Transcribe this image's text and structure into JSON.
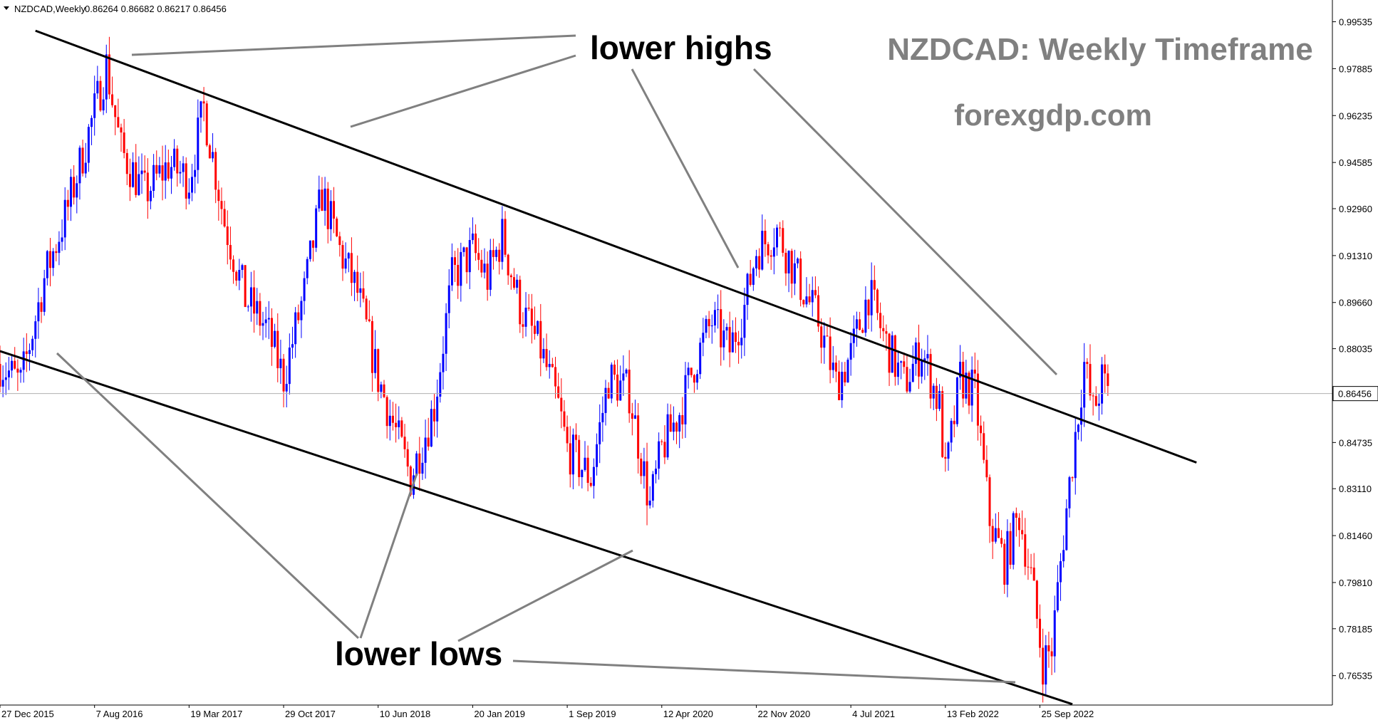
{
  "header": {
    "symbol": "NZDCAD,Weekly",
    "ohlc": "0.86264 0.86682 0.86217 0.86456"
  },
  "watermark": {
    "title": "NZDCAD: Weekly Timeframe",
    "site": "forexgdp.com"
  },
  "annotations": {
    "highs_label": "lower highs",
    "lows_label": "lower lows"
  },
  "chart_data": {
    "type": "candlestick",
    "title": "NZDCAD,Weekly",
    "current_price": 0.86456,
    "current_price_label": "0.86456",
    "ylim": [
      0.755,
      1.003
    ],
    "y_ticks": [
      "0.99535",
      "0.97885",
      "0.96235",
      "0.94585",
      "0.92960",
      "0.91310",
      "0.89660",
      "0.88035",
      "0.86456",
      "0.84735",
      "0.83110",
      "0.81460",
      "0.79810",
      "0.78185",
      "0.76535"
    ],
    "x_ticks": [
      "27 Dec 2015",
      "7 Aug 2016",
      "19 Mar 2017",
      "29 Oct 2017",
      "10 Jun 2018",
      "20 Jan 2019",
      "1 Sep 2019",
      "12 Apr 2020",
      "22 Nov 2020",
      "4 Jul 2021",
      "13 Feb 2022",
      "25 Sep 2022"
    ],
    "price_path": [
      [
        "2015-12-27",
        0.875
      ],
      [
        "2016-02-14",
        0.868
      ],
      [
        "2016-04-10",
        0.905
      ],
      [
        "2016-06-05",
        0.93
      ],
      [
        "2016-07-31",
        0.96
      ],
      [
        "2016-09-04",
        0.98
      ],
      [
        "2016-10-09",
        0.95
      ],
      [
        "2016-12-04",
        0.935
      ],
      [
        "2017-01-29",
        0.945
      ],
      [
        "2017-03-19",
        0.94
      ],
      [
        "2017-04-23",
        0.965
      ],
      [
        "2017-06-11",
        0.925
      ],
      [
        "2017-07-30",
        0.898
      ],
      [
        "2017-09-17",
        0.888
      ],
      [
        "2017-10-29",
        0.87
      ],
      [
        "2017-12-17",
        0.9
      ],
      [
        "2018-01-28",
        0.935
      ],
      [
        "2018-03-11",
        0.915
      ],
      [
        "2018-04-22",
        0.9
      ],
      [
        "2018-06-10",
        0.87
      ],
      [
        "2018-08-26",
        0.835
      ],
      [
        "2018-10-21",
        0.86
      ],
      [
        "2018-12-02",
        0.905
      ],
      [
        "2019-01-20",
        0.915
      ],
      [
        "2019-02-24",
        0.905
      ],
      [
        "2019-03-31",
        0.92
      ],
      [
        "2019-05-12",
        0.895
      ],
      [
        "2019-06-30",
        0.88
      ],
      [
        "2019-08-11",
        0.86
      ],
      [
        "2019-09-01",
        0.845
      ],
      [
        "2019-10-27",
        0.835
      ],
      [
        "2019-12-08",
        0.87
      ],
      [
        "2020-01-26",
        0.865
      ],
      [
        "2020-03-15",
        0.825
      ],
      [
        "2020-04-12",
        0.845
      ],
      [
        "2020-05-24",
        0.858
      ],
      [
        "2020-06-28",
        0.875
      ],
      [
        "2020-08-09",
        0.89
      ],
      [
        "2020-09-20",
        0.88
      ],
      [
        "2020-10-25",
        0.895
      ],
      [
        "2020-11-22",
        0.915
      ],
      [
        "2021-01-10",
        0.922
      ],
      [
        "2021-02-28",
        0.905
      ],
      [
        "2021-04-18",
        0.89
      ],
      [
        "2021-05-30",
        0.868
      ],
      [
        "2021-07-04",
        0.878
      ],
      [
        "2021-08-15",
        0.9
      ],
      [
        "2021-09-26",
        0.882
      ],
      [
        "2021-11-07",
        0.868
      ],
      [
        "2021-12-19",
        0.88
      ],
      [
        "2022-01-30",
        0.86
      ],
      [
        "2022-02-13",
        0.835
      ],
      [
        "2022-03-20",
        0.87
      ],
      [
        "2022-04-24",
        0.865
      ],
      [
        "2022-05-29",
        0.82
      ],
      [
        "2022-07-03",
        0.805
      ],
      [
        "2022-08-07",
        0.822
      ],
      [
        "2022-09-04",
        0.8
      ],
      [
        "2022-10-02",
        0.77
      ],
      [
        "2022-10-23",
        0.775
      ],
      [
        "2022-11-20",
        0.815
      ],
      [
        "2022-12-18",
        0.85
      ],
      [
        "2023-01-08",
        0.875
      ],
      [
        "2023-01-29",
        0.858
      ],
      [
        "2023-02-19",
        0.869
      ],
      [
        "2023-03-05",
        0.8646
      ]
    ],
    "trendlines": [
      {
        "name": "upper",
        "from": [
          "2016-03-20",
          0.9922
        ],
        "to": [
          "2023-10-01",
          0.8403
        ]
      },
      {
        "name": "lower",
        "from": [
          "2015-12-27",
          0.8795
        ],
        "to": [
          "2022-12-11",
          0.7553
        ]
      }
    ],
    "colors": {
      "up": "#0000ff",
      "down": "#ff0000",
      "trendline": "#000000",
      "pointer": "#808080"
    }
  }
}
